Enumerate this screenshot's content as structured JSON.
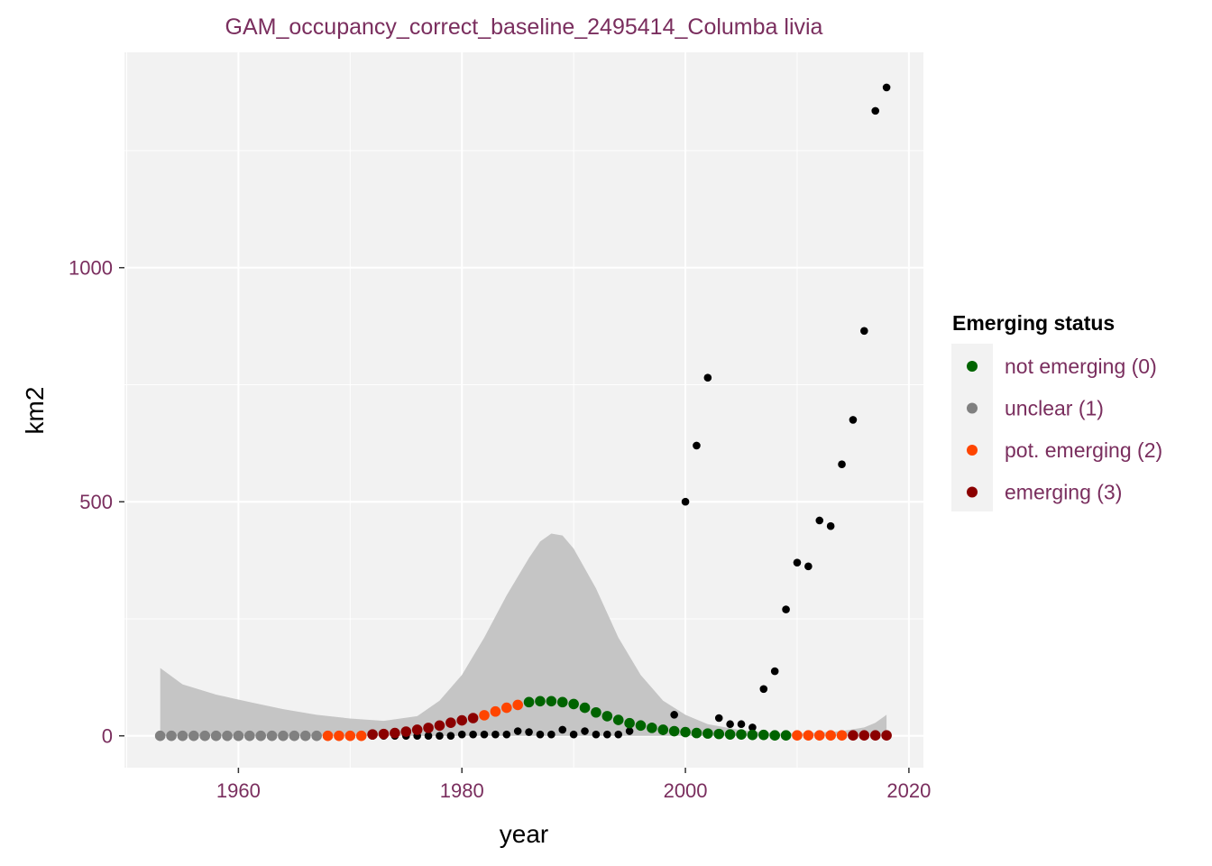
{
  "chart_data": {
    "type": "scatter",
    "title": "GAM_occupancy_correct_baseline_2495414_Columba livia",
    "xlabel": "year",
    "ylabel": "km2",
    "xlim": [
      1949.8,
      2021.3
    ],
    "ylim": [
      -68,
      1460
    ],
    "x_ticks": [
      1960,
      1980,
      2000,
      2020
    ],
    "y_ticks": [
      0,
      500,
      1000
    ],
    "grid": true,
    "colors": {
      "panel": "#f2f2f2",
      "ribbon": "#c5c5c5",
      "observed": "#000000",
      "status_0": "#006400",
      "status_1": "#808080",
      "status_2": "#ff4500",
      "status_3": "#8b0000"
    },
    "legend": {
      "title": "Emerging status",
      "placement": "right",
      "items": [
        {
          "label": "not emerging (0)",
          "status": 0
        },
        {
          "label": "unclear (1)",
          "status": 1
        },
        {
          "label": "pot. emerging (2)",
          "status": 2
        },
        {
          "label": "emerging (3)",
          "status": 3
        }
      ]
    },
    "observed": {
      "x": [
        1953,
        1954,
        1955,
        1956,
        1957,
        1958,
        1959,
        1960,
        1961,
        1962,
        1963,
        1964,
        1965,
        1966,
        1967,
        1968,
        1969,
        1970,
        1971,
        1972,
        1973,
        1974,
        1975,
        1976,
        1977,
        1978,
        1979,
        1980,
        1981,
        1982,
        1983,
        1984,
        1985,
        1986,
        1987,
        1988,
        1989,
        1990,
        1991,
        1992,
        1993,
        1994,
        1995,
        1996,
        1997,
        1998,
        1999,
        2000,
        2001,
        2002,
        2003,
        2004,
        2005,
        2006,
        2007,
        2008,
        2009,
        2010,
        2011,
        2012,
        2013,
        2014,
        2015,
        2016,
        2017,
        2018
      ],
      "y": [
        0,
        0,
        0,
        0,
        0,
        0,
        0,
        0,
        0,
        0,
        0,
        0,
        0,
        0,
        0,
        0,
        0,
        0,
        0,
        0,
        0,
        0,
        0,
        0,
        0,
        0,
        0,
        3,
        3,
        3,
        3,
        3,
        10,
        8,
        3,
        3,
        13,
        3,
        10,
        3,
        3,
        3,
        10,
        25,
        20,
        10,
        45,
        500,
        620,
        765,
        38,
        25,
        25,
        18,
        100,
        138,
        270,
        370,
        362,
        460,
        448,
        580,
        675,
        865,
        1335,
        1385
      ]
    },
    "fitted": {
      "x": [
        1953,
        1954,
        1955,
        1956,
        1957,
        1958,
        1959,
        1960,
        1961,
        1962,
        1963,
        1964,
        1965,
        1966,
        1967,
        1968,
        1969,
        1970,
        1971,
        1972,
        1973,
        1974,
        1975,
        1976,
        1977,
        1978,
        1979,
        1980,
        1981,
        1982,
        1983,
        1984,
        1985,
        1986,
        1987,
        1988,
        1989,
        1990,
        1991,
        1992,
        1993,
        1994,
        1995,
        1996,
        1997,
        1998,
        1999,
        2000,
        2001,
        2002,
        2003,
        2004,
        2005,
        2006,
        2007,
        2008,
        2009,
        2010,
        2011,
        2012,
        2013,
        2014,
        2015,
        2016,
        2017,
        2018
      ],
      "y": [
        0,
        0,
        0,
        0,
        0,
        0,
        0,
        0,
        0,
        0,
        0,
        0,
        0,
        0,
        0,
        0,
        0,
        0,
        0,
        3,
        4,
        6,
        9,
        13,
        17,
        22,
        28,
        33,
        38,
        44,
        52,
        60,
        66,
        72,
        74,
        74,
        72,
        68,
        60,
        50,
        42,
        34,
        27,
        22,
        17,
        13,
        10,
        8,
        6,
        5,
        4,
        3,
        3,
        2,
        2,
        1,
        1,
        1,
        1,
        1,
        1,
        1,
        1,
        1,
        1,
        1
      ],
      "status": [
        1,
        1,
        1,
        1,
        1,
        1,
        1,
        1,
        1,
        1,
        1,
        1,
        1,
        1,
        1,
        2,
        2,
        2,
        2,
        3,
        3,
        3,
        3,
        3,
        3,
        3,
        3,
        3,
        3,
        2,
        2,
        2,
        2,
        0,
        0,
        0,
        0,
        0,
        0,
        0,
        0,
        0,
        0,
        0,
        0,
        0,
        0,
        0,
        0,
        0,
        0,
        0,
        0,
        0,
        0,
        0,
        0,
        2,
        2,
        2,
        2,
        2,
        3,
        3,
        3,
        3
      ]
    },
    "ribbon": {
      "x": [
        1953,
        1955,
        1958,
        1961,
        1964,
        1967,
        1970,
        1973,
        1976,
        1978,
        1980,
        1982,
        1984,
        1986,
        1987,
        1988,
        1989,
        1990,
        1992,
        1994,
        1996,
        1998,
        2000,
        2002,
        2005,
        2008,
        2011,
        2014,
        2016,
        2017,
        2018
      ],
      "upper": [
        145,
        110,
        88,
        72,
        57,
        45,
        37,
        32,
        42,
        75,
        130,
        210,
        300,
        380,
        415,
        432,
        428,
        400,
        315,
        210,
        130,
        75,
        45,
        25,
        12,
        6,
        6,
        10,
        18,
        28,
        45
      ],
      "lower": [
        0,
        0,
        0,
        0,
        0,
        0,
        0,
        0,
        0,
        0,
        0,
        0,
        0,
        0,
        0,
        0,
        0,
        0,
        0,
        0,
        0,
        0,
        0,
        0,
        0,
        0,
        0,
        0,
        0,
        0,
        0
      ]
    }
  }
}
